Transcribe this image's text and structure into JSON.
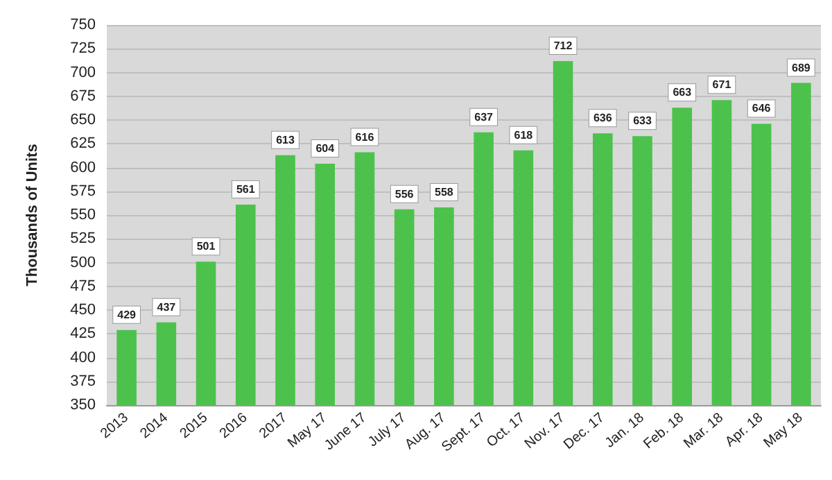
{
  "chart_data": {
    "type": "bar",
    "ylabel": "Thousands of Units",
    "categories": [
      "2013",
      "2014",
      "2015",
      "2016",
      "2017",
      "May 17",
      "June 17",
      "July 17",
      "Aug. 17",
      "Sept. 17",
      "Oct. 17",
      "Nov. 17",
      "Dec. 17",
      "Jan. 18",
      "Feb. 18",
      "Mar. 18",
      "Apr. 18",
      "May 18"
    ],
    "values": [
      429,
      437,
      501,
      561,
      613,
      604,
      616,
      556,
      558,
      637,
      618,
      712,
      636,
      633,
      663,
      671,
      646,
      689
    ],
    "color": "#4cc24c",
    "data_labels": true,
    "ylim": [
      350,
      750
    ],
    "yticks": [
      350,
      375,
      400,
      425,
      450,
      475,
      500,
      525,
      550,
      575,
      600,
      625,
      650,
      675,
      700,
      725,
      750
    ],
    "grid": "y"
  }
}
